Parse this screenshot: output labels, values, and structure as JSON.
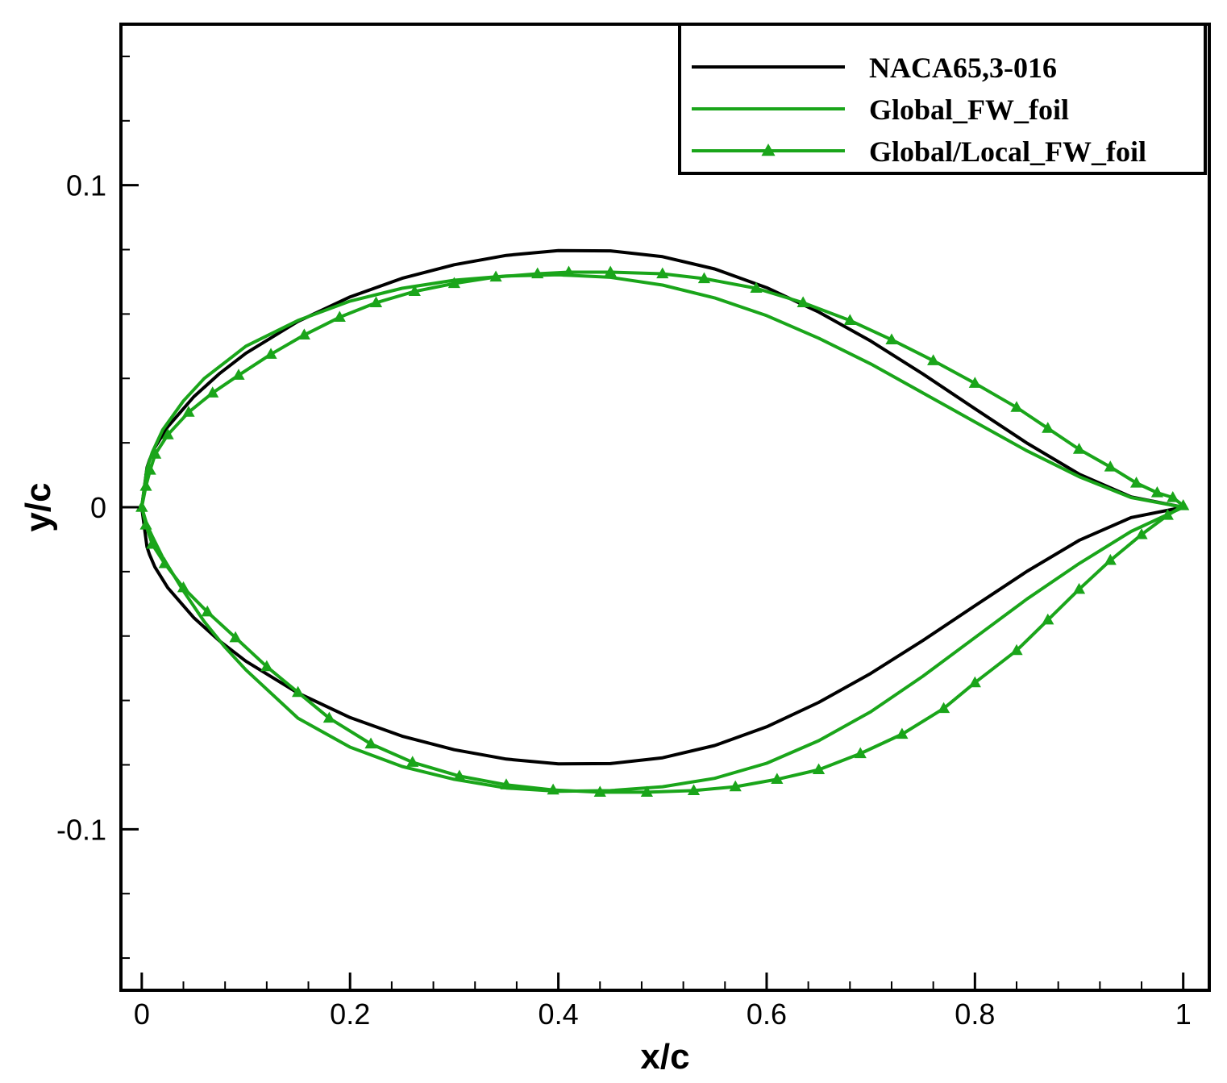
{
  "chart_data": {
    "type": "line",
    "title": "",
    "xlabel": "x/c",
    "ylabel": "y/c",
    "xlim": [
      -0.02,
      1.025
    ],
    "ylim": [
      -0.15,
      0.15
    ],
    "x_ticks": [
      0,
      0.2,
      0.4,
      0.6,
      0.8,
      1
    ],
    "x_tick_labels": [
      "0",
      "0.2",
      "0.4",
      "0.6",
      "0.8",
      "1"
    ],
    "y_ticks": [
      -0.1,
      0,
      0.1
    ],
    "y_tick_labels": [
      "-0.1",
      "0",
      "0.1"
    ],
    "grid": false,
    "legend_position": "top-right",
    "series": [
      {
        "name": "NACA65,3-016",
        "color": "#000000",
        "marker": "none",
        "x": [
          0,
          0.005,
          0.0075,
          0.0125,
          0.025,
          0.05,
          0.075,
          0.1,
          0.15,
          0.2,
          0.25,
          0.3,
          0.35,
          0.4,
          0.45,
          0.5,
          0.55,
          0.6,
          0.65,
          0.7,
          0.75,
          0.8,
          0.85,
          0.9,
          0.95,
          1.0,
          0.95,
          0.9,
          0.85,
          0.8,
          0.75,
          0.7,
          0.65,
          0.6,
          0.55,
          0.5,
          0.45,
          0.4,
          0.35,
          0.3,
          0.25,
          0.2,
          0.15,
          0.1,
          0.075,
          0.05,
          0.025,
          0.0125,
          0.0075,
          0.005,
          0
        ],
        "y": [
          0,
          0.0123,
          0.0147,
          0.0185,
          0.025,
          0.0343,
          0.0416,
          0.0478,
          0.0577,
          0.0653,
          0.0711,
          0.0753,
          0.0782,
          0.0797,
          0.0796,
          0.0778,
          0.074,
          0.0682,
          0.0606,
          0.0516,
          0.0414,
          0.0306,
          0.0199,
          0.0103,
          0.0032,
          0,
          -0.0032,
          -0.0103,
          -0.0199,
          -0.0306,
          -0.0414,
          -0.0516,
          -0.0606,
          -0.0682,
          -0.074,
          -0.0778,
          -0.0796,
          -0.0797,
          -0.0782,
          -0.0753,
          -0.0711,
          -0.0653,
          -0.0577,
          -0.0478,
          -0.0416,
          -0.0343,
          -0.025,
          -0.0185,
          -0.0147,
          -0.0123,
          0
        ]
      },
      {
        "name": "Global_FW_foil",
        "color": "#1aa51a",
        "marker": "none",
        "x": [
          0,
          0.005,
          0.01,
          0.02,
          0.04,
          0.06,
          0.08,
          0.1,
          0.15,
          0.2,
          0.25,
          0.3,
          0.35,
          0.4,
          0.45,
          0.5,
          0.55,
          0.6,
          0.65,
          0.7,
          0.75,
          0.8,
          0.85,
          0.9,
          0.95,
          1.0,
          0.95,
          0.9,
          0.85,
          0.8,
          0.75,
          0.7,
          0.65,
          0.6,
          0.55,
          0.5,
          0.45,
          0.4,
          0.35,
          0.3,
          0.25,
          0.2,
          0.15,
          0.1,
          0.08,
          0.06,
          0.04,
          0.02,
          0.01,
          0.005,
          0
        ],
        "y": [
          0,
          0.012,
          0.017,
          0.024,
          0.033,
          0.04,
          0.045,
          0.05,
          0.058,
          0.064,
          0.068,
          0.0705,
          0.0718,
          0.0722,
          0.0714,
          0.069,
          0.065,
          0.0595,
          0.0525,
          0.0445,
          0.0355,
          0.0265,
          0.0175,
          0.0095,
          0.003,
          0,
          -0.0075,
          -0.0175,
          -0.0285,
          -0.0405,
          -0.0525,
          -0.0635,
          -0.0725,
          -0.0795,
          -0.0842,
          -0.0868,
          -0.088,
          -0.0882,
          -0.0872,
          -0.0845,
          -0.0805,
          -0.0745,
          -0.0655,
          -0.0505,
          -0.0435,
          -0.0355,
          -0.026,
          -0.0155,
          -0.009,
          -0.0055,
          0
        ]
      },
      {
        "name": "Global/Local_FW_foil",
        "color": "#1aa51a",
        "marker": "triangle",
        "x": [
          0,
          0.004,
          0.008,
          0.013,
          0.025,
          0.045,
          0.068,
          0.093,
          0.124,
          0.156,
          0.19,
          0.225,
          0.262,
          0.3,
          0.34,
          0.38,
          0.41,
          0.45,
          0.5,
          0.54,
          0.59,
          0.635,
          0.68,
          0.72,
          0.76,
          0.8,
          0.84,
          0.87,
          0.9,
          0.93,
          0.955,
          0.975,
          0.99,
          1.0,
          0.985,
          0.96,
          0.93,
          0.9,
          0.87,
          0.84,
          0.8,
          0.77,
          0.73,
          0.69,
          0.65,
          0.61,
          0.57,
          0.53,
          0.485,
          0.44,
          0.395,
          0.35,
          0.305,
          0.26,
          0.22,
          0.18,
          0.15,
          0.12,
          0.09,
          0.063,
          0.04,
          0.022,
          0.01,
          0.004,
          0
        ],
        "y": [
          0,
          0.0065,
          0.0115,
          0.0165,
          0.0225,
          0.0295,
          0.0355,
          0.041,
          0.0475,
          0.0535,
          0.059,
          0.0635,
          0.067,
          0.0695,
          0.0715,
          0.0725,
          0.073,
          0.073,
          0.0725,
          0.071,
          0.068,
          0.0635,
          0.058,
          0.052,
          0.0455,
          0.0385,
          0.031,
          0.0245,
          0.018,
          0.0125,
          0.0075,
          0.0045,
          0.003,
          0.0005,
          -0.0025,
          -0.0085,
          -0.0165,
          -0.0255,
          -0.035,
          -0.0445,
          -0.0545,
          -0.0625,
          -0.0705,
          -0.0765,
          -0.0815,
          -0.0845,
          -0.0868,
          -0.088,
          -0.0885,
          -0.0885,
          -0.0878,
          -0.0862,
          -0.0835,
          -0.0792,
          -0.0735,
          -0.0655,
          -0.0575,
          -0.0495,
          -0.0405,
          -0.0325,
          -0.025,
          -0.0175,
          -0.0115,
          -0.0055,
          0
        ]
      }
    ]
  }
}
